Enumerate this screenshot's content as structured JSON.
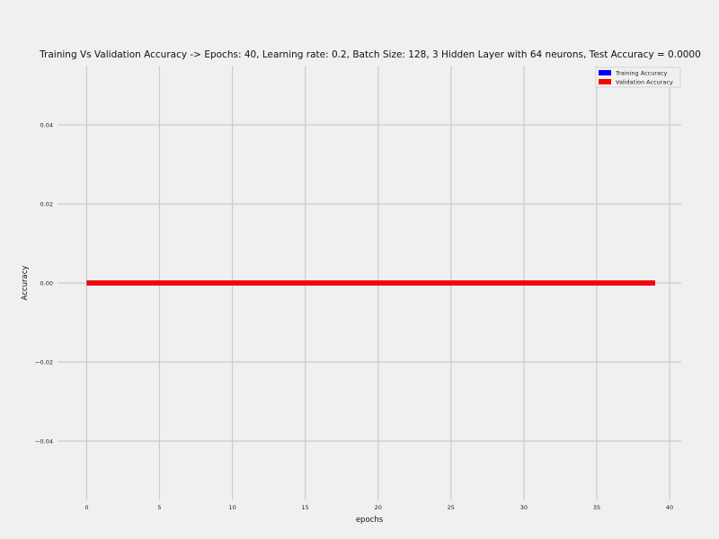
{
  "chart_data": {
    "type": "line",
    "title": "Training Vs Validation Accuracy -> Epochs: 40, Learning rate: 0.2, Batch Size: 128, 3 Hidden Layer with 64 neurons, Test Accuracy = 0.0000",
    "xlabel": "epochs",
    "ylabel": "Accuracy",
    "xlim": [
      -2,
      40.8
    ],
    "ylim": [
      -0.055,
      0.055
    ],
    "xticks": [
      0,
      5,
      10,
      15,
      20,
      25,
      30,
      35,
      40
    ],
    "xtick_labels": [
      "0",
      "5",
      "10",
      "15",
      "20",
      "25",
      "30",
      "35",
      "40"
    ],
    "yticks": [
      -0.04,
      -0.02,
      0.0,
      0.02,
      0.04
    ],
    "ytick_labels": [
      "−0.04",
      "−0.02",
      "0.00",
      "0.02",
      "0.04"
    ],
    "grid": true,
    "legend_position": "top-right",
    "x": [
      0,
      1,
      2,
      3,
      4,
      5,
      6,
      7,
      8,
      9,
      10,
      11,
      12,
      13,
      14,
      15,
      16,
      17,
      18,
      19,
      20,
      21,
      22,
      23,
      24,
      25,
      26,
      27,
      28,
      29,
      30,
      31,
      32,
      33,
      34,
      35,
      36,
      37,
      38,
      39
    ],
    "series": [
      {
        "name": "Training Accuracy",
        "color": "#0000ff",
        "values": [
          0,
          0,
          0,
          0,
          0,
          0,
          0,
          0,
          0,
          0,
          0,
          0,
          0,
          0,
          0,
          0,
          0,
          0,
          0,
          0,
          0,
          0,
          0,
          0,
          0,
          0,
          0,
          0,
          0,
          0,
          0,
          0,
          0,
          0,
          0,
          0,
          0,
          0,
          0,
          0
        ]
      },
      {
        "name": "Validation Accuracy",
        "color": "#ff0000",
        "values": [
          0,
          0,
          0,
          0,
          0,
          0,
          0,
          0,
          0,
          0,
          0,
          0,
          0,
          0,
          0,
          0,
          0,
          0,
          0,
          0,
          0,
          0,
          0,
          0,
          0,
          0,
          0,
          0,
          0,
          0,
          0,
          0,
          0,
          0,
          0,
          0,
          0,
          0,
          0,
          0
        ]
      }
    ]
  }
}
